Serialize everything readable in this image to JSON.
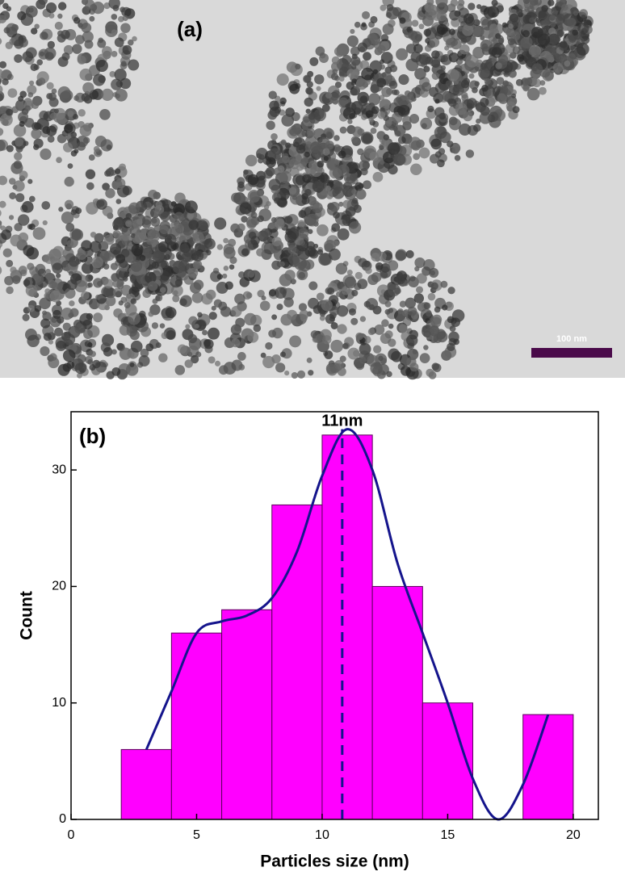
{
  "image": {
    "label": "(a)",
    "scale_bar": "100 nm"
  },
  "chart_data": {
    "type": "histogram",
    "panel_label": "(b)",
    "annotation": "11nm",
    "x_label": "Particles size (nm)",
    "y_label": "Count",
    "bins": [
      2,
      4,
      6,
      8,
      10,
      12,
      14,
      16,
      18,
      20
    ],
    "values": [
      6,
      16,
      18,
      27,
      33,
      20,
      10,
      0,
      9
    ],
    "color": "#ff00ff",
    "edge_color": "#5a005a",
    "xlim": [
      0,
      21
    ],
    "ylim": [
      0,
      35
    ],
    "xticks": [
      0,
      5,
      10,
      15,
      20
    ],
    "yticks": [
      0,
      10,
      20,
      30
    ],
    "peak_x": 10.8,
    "fit": {
      "color": "#14148c",
      "x": [
        3,
        4,
        5,
        6,
        7,
        8,
        9,
        10,
        11,
        12,
        13,
        14,
        15,
        16,
        17,
        18,
        19
      ],
      "values": [
        6,
        11,
        16,
        17,
        17.5,
        19,
        23,
        29.5,
        33.5,
        30,
        22,
        16,
        10,
        3.5,
        0,
        3,
        9
      ]
    }
  }
}
